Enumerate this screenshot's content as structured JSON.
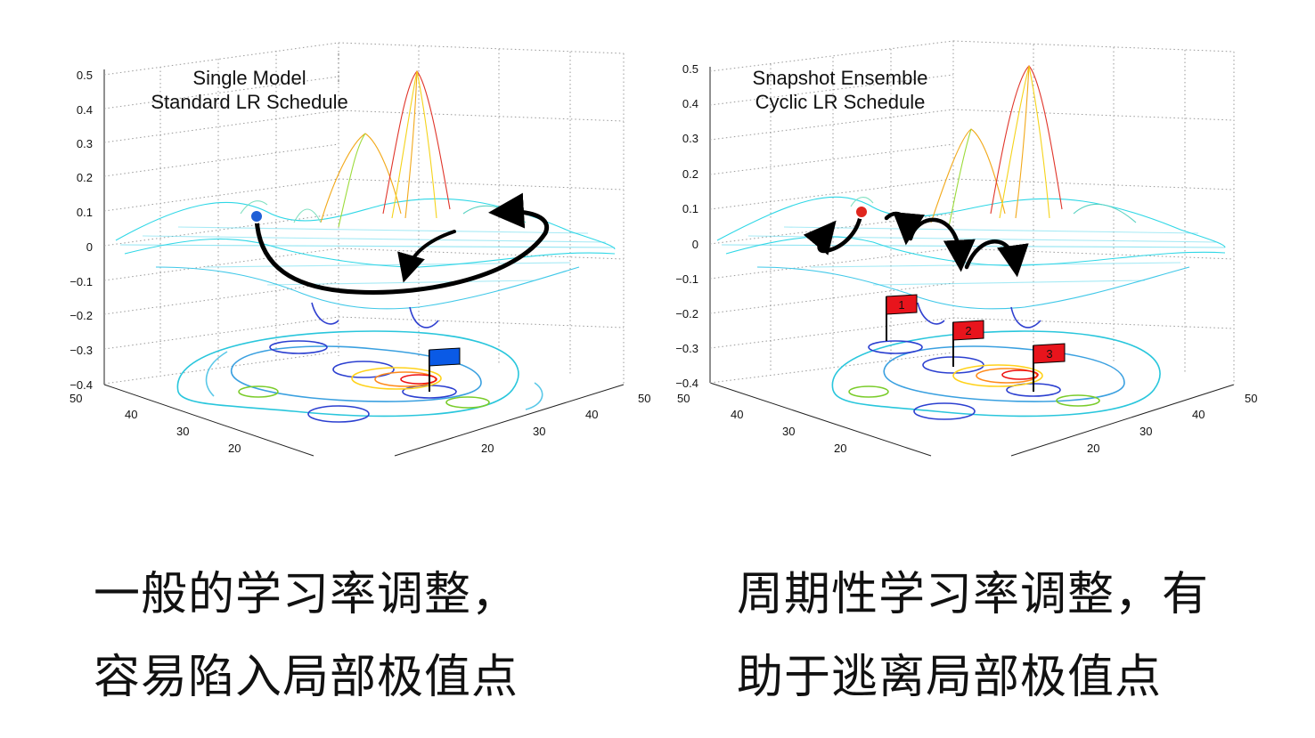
{
  "panels": [
    {
      "id": "left",
      "title_lines": [
        "Single Model",
        "Standard LR Schedule"
      ],
      "z_ticks": [
        "0.5",
        "0.4",
        "0.3",
        "0.2",
        "0.1",
        "0",
        "−0.1",
        "−0.2",
        "−0.3",
        "−0.4"
      ],
      "back_axis_ticks": [
        "50",
        "40",
        "30",
        "20"
      ],
      "right_axis_ticks": [
        "50",
        "40",
        "30",
        "20"
      ],
      "marker_color": "#1f5fd6",
      "flags": [
        {
          "label": "",
          "color": "#0a5ae6"
        }
      ]
    },
    {
      "id": "right",
      "title_lines": [
        "Snapshot Ensemble",
        "Cyclic LR Schedule"
      ],
      "z_ticks": [
        "0.5",
        "0.4",
        "0.3",
        "0.2",
        "0.1",
        "0",
        "−0.1",
        "−0.2",
        "−0.3",
        "−0.4"
      ],
      "back_axis_ticks": [
        "50",
        "40",
        "30",
        "20"
      ],
      "right_axis_ticks": [
        "50",
        "40",
        "30",
        "20"
      ],
      "marker_color": "#e0261e",
      "flags": [
        {
          "label": "1",
          "color": "#e8141c"
        },
        {
          "label": "2",
          "color": "#e8141c"
        },
        {
          "label": "3",
          "color": "#e8141c"
        }
      ]
    }
  ],
  "captions": {
    "left_line1": "一般的学习率调整，",
    "left_line2": "容易陷入局部极值点",
    "right_line1": "周期性学习率调整，有",
    "right_line2": "助于逃离局部极值点"
  }
}
